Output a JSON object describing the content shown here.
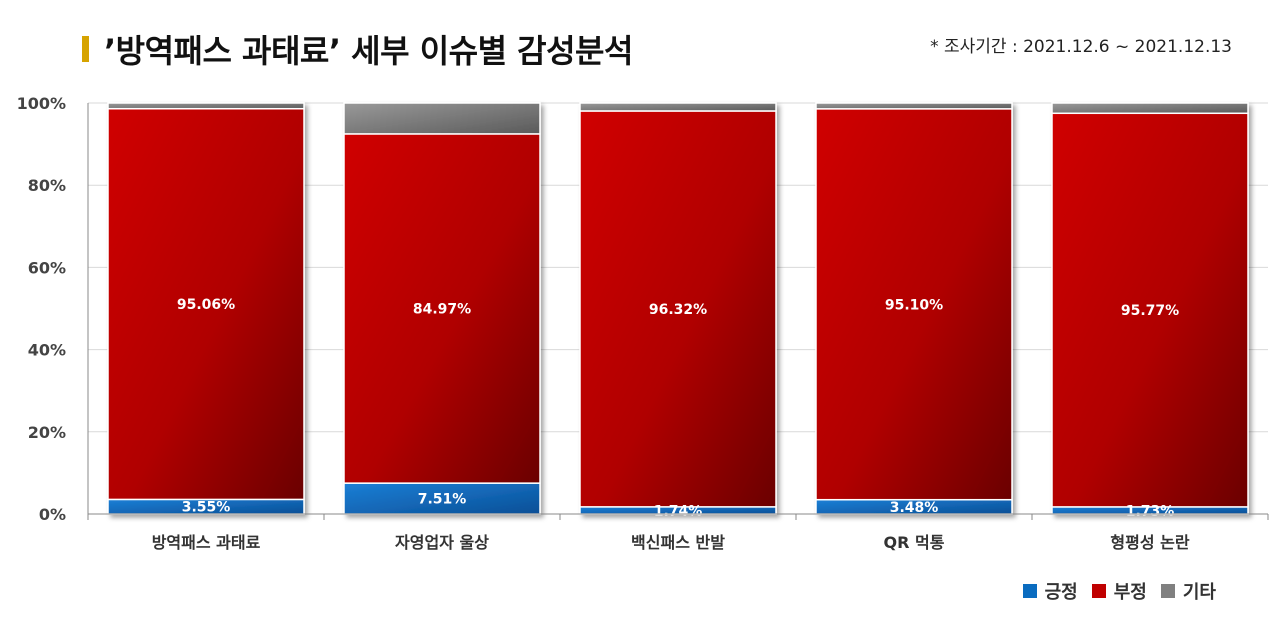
{
  "title": "’방역패스 과태료’ 세부 이슈별 감성분석",
  "period": "* 조사기간 : 2021.12.6 ~ 2021.12.13",
  "colors": {
    "positive": "#0a6cc0",
    "negative": "#c00000",
    "other": "#808080",
    "accent": "#d6a300"
  },
  "chart_data": {
    "type": "bar",
    "stacked": true,
    "categories": [
      "방역패스 과태료",
      "자영업자 울상",
      "백신패스 반발",
      "QR 먹통",
      "형평성 논란"
    ],
    "series": [
      {
        "name": "긍정",
        "values": [
          3.55,
          7.51,
          1.74,
          3.48,
          1.73
        ],
        "labels": [
          "3.55%",
          "7.51%",
          "1.74%",
          "3.48%",
          "1.73%"
        ]
      },
      {
        "name": "부정",
        "values": [
          95.06,
          84.97,
          96.32,
          95.1,
          95.77
        ],
        "labels": [
          "95.06%",
          "84.97%",
          "96.32%",
          "95.10%",
          "95.77%"
        ]
      },
      {
        "name": "기타",
        "values": [
          1.39,
          7.52,
          1.94,
          1.42,
          2.5
        ]
      }
    ],
    "ylim": [
      0,
      100
    ],
    "yticks": [
      "0%",
      "20%",
      "40%",
      "60%",
      "80%",
      "100%"
    ],
    "grid": true,
    "legend": "bottom-right"
  }
}
